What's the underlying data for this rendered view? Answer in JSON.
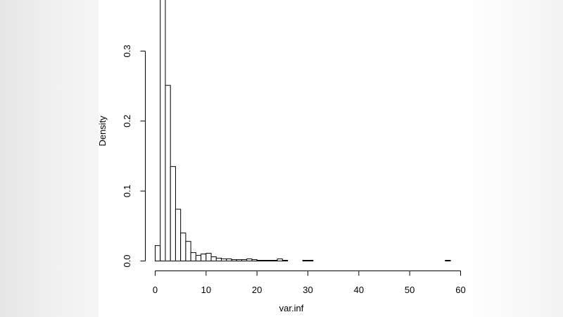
{
  "chart_data": {
    "type": "bar",
    "title": "",
    "xlabel": "var.inf",
    "ylabel": "Density",
    "xlim": [
      0,
      60
    ],
    "ylim": [
      0,
      0.37
    ],
    "grid": false,
    "bin_width": 1,
    "bins_start": 0,
    "x_ticks": [
      "0",
      "10",
      "20",
      "30",
      "40",
      "50",
      "60"
    ],
    "y_ticks": [
      "0.0",
      "0.1",
      "0.2",
      "0.3"
    ],
    "values": [
      0.022,
      0.38,
      0.251,
      0.135,
      0.074,
      0.04,
      0.028,
      0.012,
      0.008,
      0.01,
      0.011,
      0.006,
      0.004,
      0.003,
      0.003,
      0.002,
      0.002,
      0.002,
      0.003,
      0.002,
      0.001,
      0.001,
      0.001,
      0.001,
      0.003,
      0.001,
      0.0,
      0.0,
      0.0,
      0.001,
      0.001,
      0.0,
      0.0,
      0.0,
      0.0,
      0.0,
      0.0,
      0.0,
      0.0,
      0.0,
      0.0,
      0.0,
      0.0,
      0.0,
      0.0,
      0.0,
      0.0,
      0.0,
      0.0,
      0.0,
      0.0,
      0.0,
      0.0,
      0.0,
      0.0,
      0.0,
      0.0,
      0.001
    ]
  }
}
